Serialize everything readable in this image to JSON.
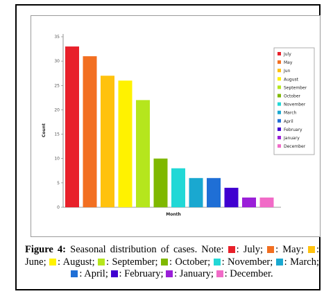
{
  "chart_data": {
    "type": "bar",
    "categories": [
      "July",
      "May",
      "Jun",
      "August",
      "September",
      "October",
      "November",
      "March",
      "April",
      "February",
      "January",
      "December"
    ],
    "values": [
      33,
      31,
      27,
      26,
      22,
      10,
      8,
      6,
      6,
      4,
      2,
      2
    ],
    "colors": [
      "#e8202a",
      "#f26f21",
      "#ffc20e",
      "#fff200",
      "#b5e61d",
      "#7fb800",
      "#22d8d6",
      "#1aa8d0",
      "#1f6fd6",
      "#4000d0",
      "#9a1fd8",
      "#f16bc7"
    ],
    "xlabel": "Month",
    "ylabel": "Count",
    "ylim": [
      0,
      35
    ],
    "yticks": [
      0,
      5,
      10,
      15,
      20,
      25,
      30,
      35
    ],
    "grid": false,
    "legend_position": "right"
  },
  "caption": {
    "label": "Figure 4:",
    "intro": "Seasonal distribution of cases. Note:",
    "items": [
      {
        "text": ": July;",
        "color": "#e8202a"
      },
      {
        "text": ": May;",
        "color": "#f26f21"
      },
      {
        "text": ": June;",
        "color": "#ffc20e"
      },
      {
        "text": ": August;",
        "color": "#fff200"
      },
      {
        "text": ": September;",
        "color": "#b5e61d"
      },
      {
        "text": ": October;",
        "color": "#7fb800"
      },
      {
        "text": ": November;",
        "color": "#22d8d6"
      },
      {
        "text": ": March;",
        "color": "#1aa8d0"
      },
      {
        "text": ": April;",
        "color": "#1f6fd6"
      },
      {
        "text": ": February;",
        "color": "#4000d0"
      },
      {
        "text": ": January;",
        "color": "#9a1fd8"
      },
      {
        "text": ": December.",
        "color": "#f16bc7"
      }
    ]
  }
}
